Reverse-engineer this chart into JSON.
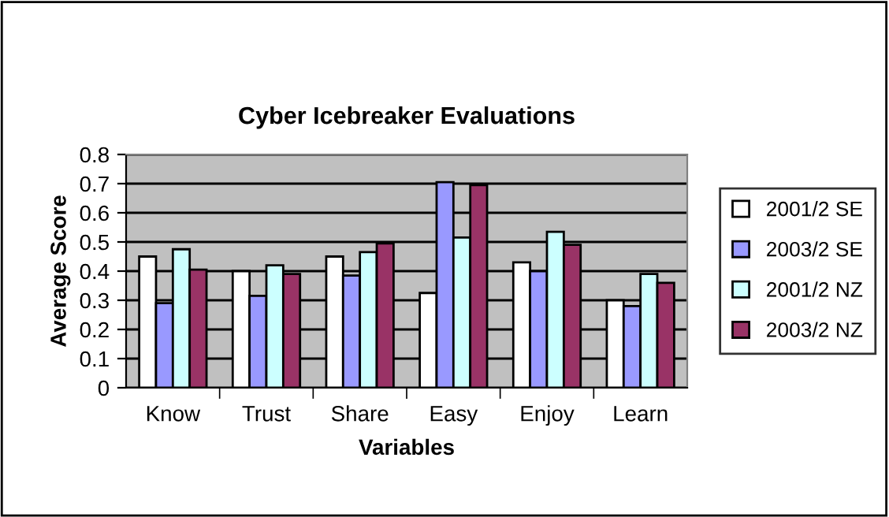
{
  "chart_data": {
    "type": "bar",
    "title": "Cyber Icebreaker Evaluations",
    "xlabel": "Variables",
    "ylabel": "Average Score",
    "categories": [
      "Know",
      "Trust",
      "Share",
      "Easy",
      "Enjoy",
      "Learn"
    ],
    "series": [
      {
        "name": "2001/2 SE",
        "color": "#ffffff",
        "values": [
          0.45,
          0.4,
          0.45,
          0.325,
          0.43,
          0.3
        ]
      },
      {
        "name": "2003/2 SE",
        "color": "#9999ff",
        "values": [
          0.29,
          0.315,
          0.385,
          0.705,
          0.4,
          0.28
        ]
      },
      {
        "name": "2001/2 NZ",
        "color": "#ccffff",
        "values": [
          0.475,
          0.42,
          0.465,
          0.515,
          0.535,
          0.39
        ]
      },
      {
        "name": "2003/2 NZ",
        "color": "#993366",
        "values": [
          0.405,
          0.39,
          0.495,
          0.695,
          0.49,
          0.36
        ]
      }
    ],
    "ylim": [
      0,
      0.8
    ],
    "yticks": [
      0,
      0.1,
      0.2,
      0.3,
      0.4,
      0.5,
      0.6,
      0.7,
      0.8
    ],
    "grid": "y",
    "legend": "right"
  }
}
